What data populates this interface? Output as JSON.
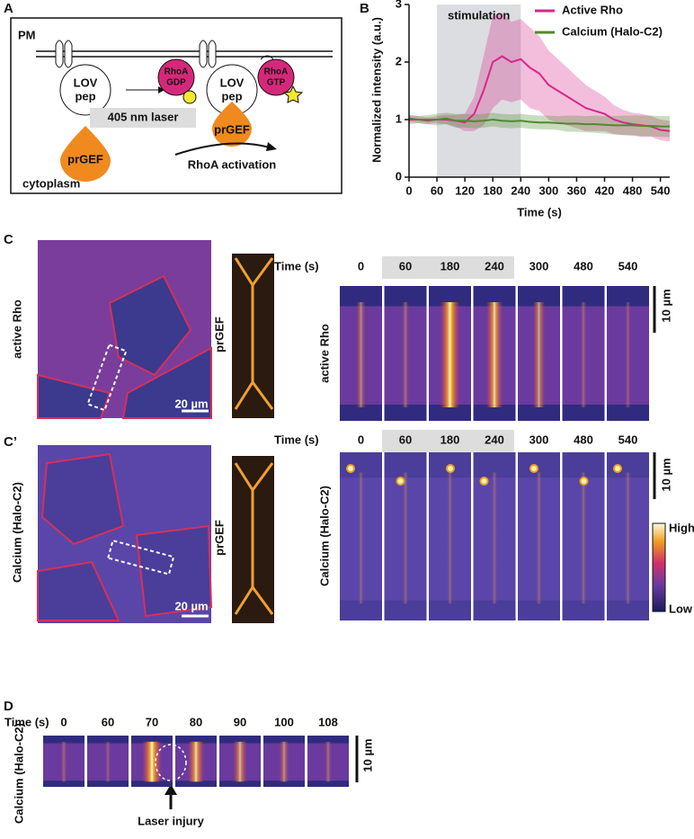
{
  "panels": {
    "A": {
      "letter": "A",
      "pm": "PM",
      "lov1": [
        "LOV",
        "pep"
      ],
      "rhoa_gdp": [
        "RhoA",
        "GDP"
      ],
      "lov2": [
        "LOV",
        "pep"
      ],
      "rhoa_gtp": [
        "RhoA",
        "GTP"
      ],
      "laser": "405 nm laser",
      "prgef1": "prGEF",
      "prgef2": "prGEF",
      "activation": "RhoA activation",
      "cytoplasm": "cytoplasm"
    },
    "B": {
      "letter": "B"
    },
    "C": {
      "letter": "C",
      "image_label": "active Rho",
      "scale": "20 µm",
      "strip_label": "prGEF",
      "time_title": "Time (s)",
      "times": [
        0,
        60,
        180,
        240,
        300,
        480,
        540
      ],
      "kymo_label": "active Rho",
      "kymo_scale": "10 µm"
    },
    "C2": {
      "letter": "C’",
      "image_label": "Calcium (Halo-C2)",
      "scale": "20 µm",
      "strip_label": "prGEF",
      "time_title": "Time (s)",
      "times": [
        0,
        60,
        180,
        240,
        300,
        480,
        540
      ],
      "kymo_label": "Calcium (Halo-C2)",
      "kymo_scale": "10 µm",
      "colorbar_high": "High",
      "colorbar_low": "Low"
    },
    "D": {
      "letter": "D",
      "time_title": "Time (s)",
      "times": [
        0,
        60,
        70,
        80,
        90,
        100,
        108
      ],
      "label": "Calcium (Halo-C2)",
      "scale": "10 µm",
      "arrow_label": "Laser injury"
    }
  },
  "chart_data": {
    "type": "line",
    "stimulation_label": "stimulation",
    "stimulation": [
      60,
      240
    ],
    "xlabel": "Time (s)",
    "ylabel": "Normalized intensity (a.u.)",
    "x": [
      0,
      20,
      40,
      60,
      80,
      100,
      120,
      140,
      160,
      180,
      200,
      220,
      240,
      260,
      280,
      300,
      320,
      340,
      360,
      380,
      400,
      420,
      440,
      460,
      480,
      500,
      520,
      540,
      560
    ],
    "xlim": [
      0,
      560
    ],
    "xticks": [
      0,
      60,
      120,
      180,
      240,
      300,
      360,
      420,
      480,
      540
    ],
    "ylim": [
      0,
      3
    ],
    "yticks": [
      0,
      1,
      2,
      3
    ],
    "legend": "upper right",
    "series": [
      {
        "name": "Active Rho",
        "color": "#d6288a",
        "values": [
          1.0,
          1.0,
          0.98,
          1.0,
          1.0,
          0.98,
          0.95,
          1.1,
          1.5,
          2.0,
          2.1,
          2.0,
          2.05,
          1.9,
          1.8,
          1.6,
          1.5,
          1.4,
          1.3,
          1.2,
          1.15,
          1.1,
          1.0,
          0.95,
          0.92,
          0.9,
          0.88,
          0.82,
          0.8
        ],
        "error": [
          0.08,
          0.06,
          0.06,
          0.06,
          0.08,
          0.1,
          0.15,
          0.3,
          0.6,
          0.8,
          0.75,
          0.7,
          0.7,
          0.7,
          0.65,
          0.6,
          0.55,
          0.5,
          0.45,
          0.4,
          0.35,
          0.3,
          0.25,
          0.22,
          0.2,
          0.2,
          0.18,
          0.18,
          0.18
        ]
      },
      {
        "name": "Calcium (Halo-C2)",
        "color": "#4f8a2e",
        "values": [
          1.02,
          1.0,
          1.0,
          1.0,
          1.02,
          0.98,
          0.98,
          0.97,
          0.98,
          1.0,
          0.98,
          0.97,
          0.98,
          0.96,
          0.95,
          0.95,
          0.94,
          0.93,
          0.93,
          0.92,
          0.92,
          0.91,
          0.9,
          0.9,
          0.9,
          0.89,
          0.89,
          0.88,
          0.88
        ],
        "error": [
          0.06,
          0.06,
          0.08,
          0.1,
          0.1,
          0.12,
          0.12,
          0.12,
          0.12,
          0.12,
          0.12,
          0.12,
          0.12,
          0.12,
          0.12,
          0.12,
          0.12,
          0.14,
          0.14,
          0.14,
          0.15,
          0.15,
          0.16,
          0.17,
          0.17,
          0.18,
          0.18,
          0.18,
          0.18
        ]
      }
    ]
  }
}
